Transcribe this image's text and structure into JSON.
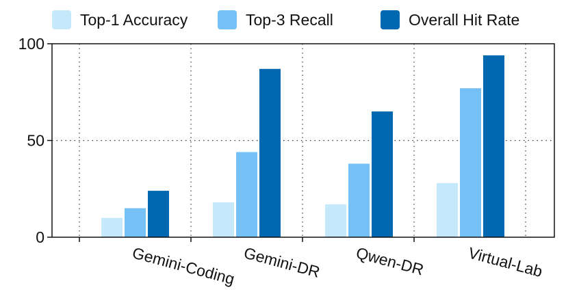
{
  "chart_data": {
    "type": "bar",
    "categories": [
      "Gemini-Coding",
      "Gemini-DR",
      "Qwen-DR",
      "Virtual-Lab"
    ],
    "series": [
      {
        "name": "Top-1 Accuracy",
        "color": "#c6e8fb",
        "values": [
          10,
          18,
          17,
          28
        ]
      },
      {
        "name": "Top-3 Recall",
        "color": "#74c0f7",
        "values": [
          15,
          44,
          38,
          77
        ]
      },
      {
        "name": "Overall Hit Rate",
        "color": "#0068b0",
        "values": [
          24,
          87,
          65,
          94
        ]
      }
    ],
    "yticks": [
      "0",
      "50",
      "100"
    ],
    "ylim": [
      0,
      100
    ],
    "grid": "dotted",
    "legend": "top",
    "title": "",
    "xlabel": "",
    "ylabel": ""
  }
}
